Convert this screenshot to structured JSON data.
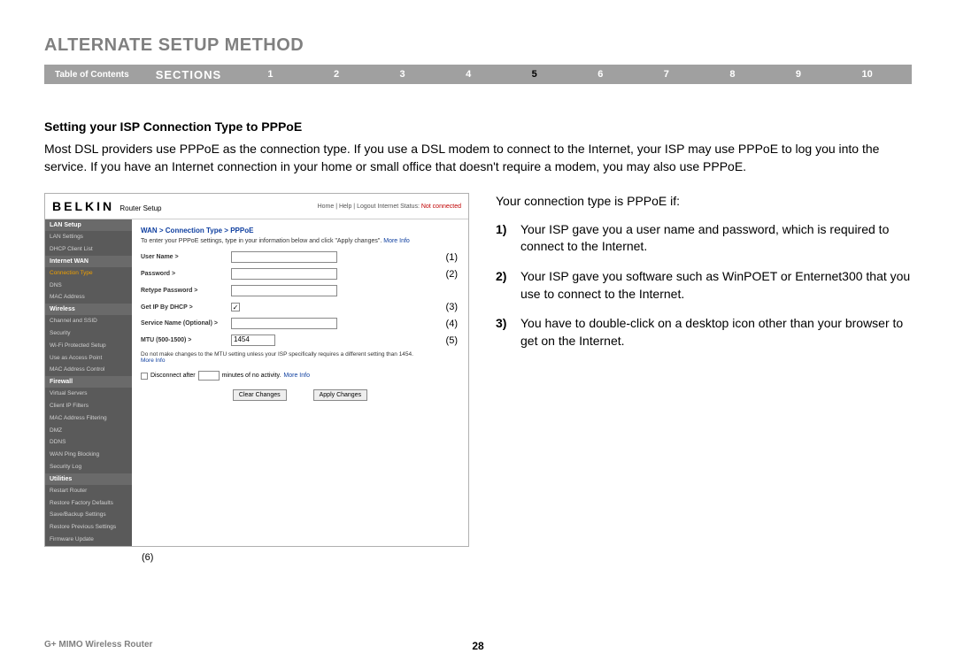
{
  "page_title": "ALTERNATE SETUP METHOD",
  "nav": {
    "toc": "Table of Contents",
    "sections_label": "SECTIONS",
    "items": [
      "1",
      "2",
      "3",
      "4",
      "5",
      "6",
      "7",
      "8",
      "9",
      "10"
    ],
    "active_index": 4,
    "bar_bg": "#a0a0a0",
    "text_color": "#ffffff",
    "active_color": "#000000"
  },
  "subheading": "Setting your ISP Connection Type to PPPoE",
  "body_paragraph": "Most DSL providers use PPPoE as the connection type. If you use a DSL modem to connect to the Internet, your ISP may use PPPoE to log you into the service. If you have an Internet connection in your home or small office that doesn't require a modem, you may also use PPPoE.",
  "right": {
    "lead": "Your connection type is PPPoE if:",
    "items": [
      {
        "n": "1)",
        "t": "Your ISP gave you a user name and password, which is required to connect to the Internet."
      },
      {
        "n": "2)",
        "t": "Your ISP gave you software such as WinPOET or Enternet300 that you use to connect to the Internet."
      },
      {
        "n": "3)",
        "t": "You have to double-click on a desktop icon other than your browser to get on the Internet."
      }
    ]
  },
  "screenshot": {
    "brand": "BELKIN",
    "brand_sub": "Router Setup",
    "toplinks": "Home | Help | Logout   Internet Status:",
    "status": "Not connected",
    "sidebar": [
      {
        "type": "hdr",
        "label": "LAN Setup"
      },
      {
        "type": "itm",
        "label": "LAN Settings"
      },
      {
        "type": "itm",
        "label": "DHCP Client List"
      },
      {
        "type": "hdr",
        "label": "Internet WAN"
      },
      {
        "type": "itm",
        "label": "Connection Type",
        "active": true
      },
      {
        "type": "itm",
        "label": "DNS"
      },
      {
        "type": "itm",
        "label": "MAC Address"
      },
      {
        "type": "hdr",
        "label": "Wireless"
      },
      {
        "type": "itm",
        "label": "Channel and SSID"
      },
      {
        "type": "itm",
        "label": "Security"
      },
      {
        "type": "itm",
        "label": "Wi-Fi Protected Setup"
      },
      {
        "type": "itm",
        "label": "Use as Access Point"
      },
      {
        "type": "itm",
        "label": "MAC Address Control"
      },
      {
        "type": "hdr",
        "label": "Firewall"
      },
      {
        "type": "itm",
        "label": "Virtual Servers"
      },
      {
        "type": "itm",
        "label": "Client IP Filters"
      },
      {
        "type": "itm",
        "label": "MAC Address Filtering"
      },
      {
        "type": "itm",
        "label": "DMZ"
      },
      {
        "type": "itm",
        "label": "DDNS"
      },
      {
        "type": "itm",
        "label": "WAN Ping Blocking"
      },
      {
        "type": "itm",
        "label": "Security Log"
      },
      {
        "type": "hdr",
        "label": "Utilities"
      },
      {
        "type": "itm",
        "label": "Restart Router"
      },
      {
        "type": "itm",
        "label": "Restore Factory Defaults"
      },
      {
        "type": "itm",
        "label": "Save/Backup Settings"
      },
      {
        "type": "itm",
        "label": "Restore Previous Settings"
      },
      {
        "type": "itm",
        "label": "Firmware Update"
      }
    ],
    "breadcrumb": "WAN > Connection Type > PPPoE",
    "instruction": "To enter your PPPoE settings, type in your information below and click \"Apply changes\".",
    "more_info": "More Info",
    "fields": [
      {
        "label": "User Name >",
        "type": "text",
        "ann": "(1)"
      },
      {
        "label": "Password >",
        "type": "text",
        "ann": "(2)"
      },
      {
        "label": "Retype Password >",
        "type": "text",
        "ann": ""
      },
      {
        "label": "Get IP By DHCP >",
        "type": "check",
        "checked": true,
        "ann": "(3)"
      },
      {
        "label": "Service Name (Optional) >",
        "type": "text",
        "ann": "(4)"
      },
      {
        "label": "MTU (500-1500) >",
        "type": "text",
        "value": "1454",
        "ann": "(5)"
      }
    ],
    "mtu_note": "Do not make changes to the MTU setting unless your ISP specifically requires a different setting than 1454.",
    "disconnect_row": {
      "pre": "Disconnect after",
      "post": "minutes of no activity."
    },
    "buttons": {
      "clear": "Clear Changes",
      "apply": "Apply Changes"
    },
    "below_annotation": "(6)"
  },
  "footer": {
    "left": "G+ MIMO Wireless Router",
    "page": "28"
  },
  "colors": {
    "title_gray": "#808080",
    "link_blue": "#1040a0",
    "status_red": "#c00000",
    "sidebar_bg": "#5a5a5a",
    "sidebar_hdr": "#6a6a6a",
    "active_orange": "#f0a000"
  }
}
